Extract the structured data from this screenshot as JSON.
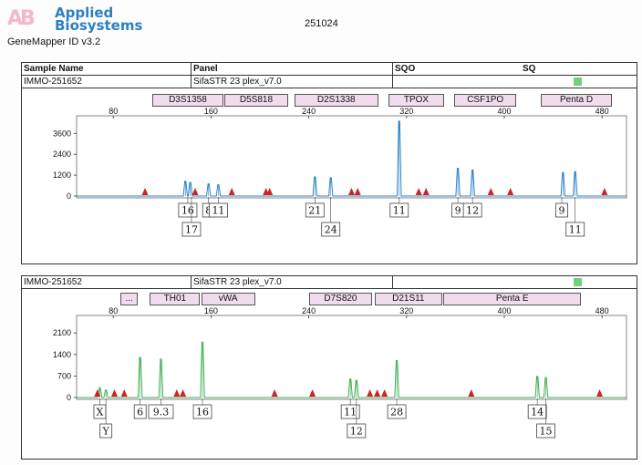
{
  "header": {
    "logo_line1": "Applied",
    "logo_line2": "Biosystems",
    "software": "GeneMapper ID v3.2",
    "run_id": "251024"
  },
  "columns": {
    "sample_name": "Sample Name",
    "panel": "Panel",
    "sqo": "SQO",
    "sq": "SQ"
  },
  "colors": {
    "blue_dye": "#2a85c8",
    "green_dye": "#3fae55",
    "marker_fill": "#f1dcee",
    "sizing_flag": "#6fd17a",
    "size_standard_peak": "#d42020"
  },
  "size_axis": {
    "min": 50,
    "max": 500,
    "ticks": [
      80,
      160,
      240,
      320,
      400,
      480
    ]
  },
  "electropherograms": [
    {
      "id": "blue",
      "sample_name": "IMMO-251652",
      "panel": "SifaSTR 23 plex_v7.0",
      "sq_flag": "green",
      "dye": "blue",
      "y_ticks": [
        0,
        1200,
        2400,
        3600
      ],
      "y_max": 4400,
      "markers": [
        {
          "name": "D3S1358",
          "start": 112,
          "end": 170
        },
        {
          "name": "D5S818",
          "start": 171,
          "end": 223
        },
        {
          "name": "D2S1338",
          "start": 228,
          "end": 297
        },
        {
          "name": "TPOX",
          "start": 305,
          "end": 351
        },
        {
          "name": "CSF1PO",
          "start": 359,
          "end": 410
        },
        {
          "name": "Penta D",
          "start": 430,
          "end": 488
        }
      ],
      "peaks": [
        {
          "size": 139,
          "height": 850
        },
        {
          "size": 143,
          "height": 780
        },
        {
          "size": 158,
          "height": 700
        },
        {
          "size": 166,
          "height": 650
        },
        {
          "size": 245,
          "height": 1100
        },
        {
          "size": 258,
          "height": 1050
        },
        {
          "size": 314,
          "height": 4300
        },
        {
          "size": 362,
          "height": 1600
        },
        {
          "size": 374,
          "height": 1500
        },
        {
          "size": 448,
          "height": 1350
        },
        {
          "size": 458,
          "height": 1400
        }
      ],
      "size_standard": [
        106,
        147,
        177,
        205,
        208,
        275,
        280,
        330,
        336,
        389,
        405,
        482
      ],
      "alleles": [
        {
          "label": "16",
          "size": 141,
          "row": 0
        },
        {
          "label": "17",
          "size": 144,
          "row": 1
        },
        {
          "label": "8",
          "size": 158,
          "row": 0
        },
        {
          "label": "11",
          "size": 166,
          "row": 0
        },
        {
          "label": "21",
          "size": 245,
          "row": 0
        },
        {
          "label": "24",
          "size": 258,
          "row": 1
        },
        {
          "label": "11",
          "size": 314,
          "row": 0
        },
        {
          "label": "9",
          "size": 362,
          "row": 0
        },
        {
          "label": "12",
          "size": 374,
          "row": 0
        },
        {
          "label": "9",
          "size": 447,
          "row": 0
        },
        {
          "label": "11",
          "size": 458,
          "row": 1
        }
      ]
    },
    {
      "id": "green",
      "sample_name": "IMMO-251652",
      "panel": "SifaSTR 23 plex_v7.0",
      "sq_flag": "green",
      "dye": "green",
      "y_ticks": [
        0,
        700,
        1400,
        2100
      ],
      "y_max": 2550,
      "markers": [
        {
          "name": "...",
          "start": 86,
          "end": 100
        },
        {
          "name": "TH01",
          "start": 110,
          "end": 151
        },
        {
          "name": "vWA",
          "start": 152,
          "end": 196
        },
        {
          "name": "D7S820",
          "start": 240,
          "end": 292
        },
        {
          "name": "D21S11",
          "start": 294,
          "end": 349
        },
        {
          "name": "Penta E",
          "start": 350,
          "end": 463
        }
      ],
      "peaks": [
        {
          "size": 69,
          "height": 320
        },
        {
          "size": 74,
          "height": 240
        },
        {
          "size": 102,
          "height": 1300
        },
        {
          "size": 119,
          "height": 1250
        },
        {
          "size": 153,
          "height": 1800
        },
        {
          "size": 274,
          "height": 600
        },
        {
          "size": 279,
          "height": 560
        },
        {
          "size": 312,
          "height": 1200
        },
        {
          "size": 427,
          "height": 690
        },
        {
          "size": 434,
          "height": 650
        }
      ],
      "size_standard": [
        67,
        81,
        89,
        132,
        137,
        212,
        243,
        290,
        296,
        302,
        373,
        478
      ],
      "alleles": [
        {
          "label": "X",
          "size": 69,
          "row": 0
        },
        {
          "label": "Y",
          "size": 74,
          "row": 1
        },
        {
          "label": "6",
          "size": 102,
          "row": 0
        },
        {
          "label": "9.3",
          "size": 119,
          "row": 0
        },
        {
          "label": "16",
          "size": 153,
          "row": 0
        },
        {
          "label": "11",
          "size": 274,
          "row": 0
        },
        {
          "label": "12",
          "size": 279,
          "row": 1
        },
        {
          "label": "28",
          "size": 312,
          "row": 0
        },
        {
          "label": "14",
          "size": 427,
          "row": 0
        },
        {
          "label": "15",
          "size": 434,
          "row": 1
        }
      ]
    }
  ]
}
